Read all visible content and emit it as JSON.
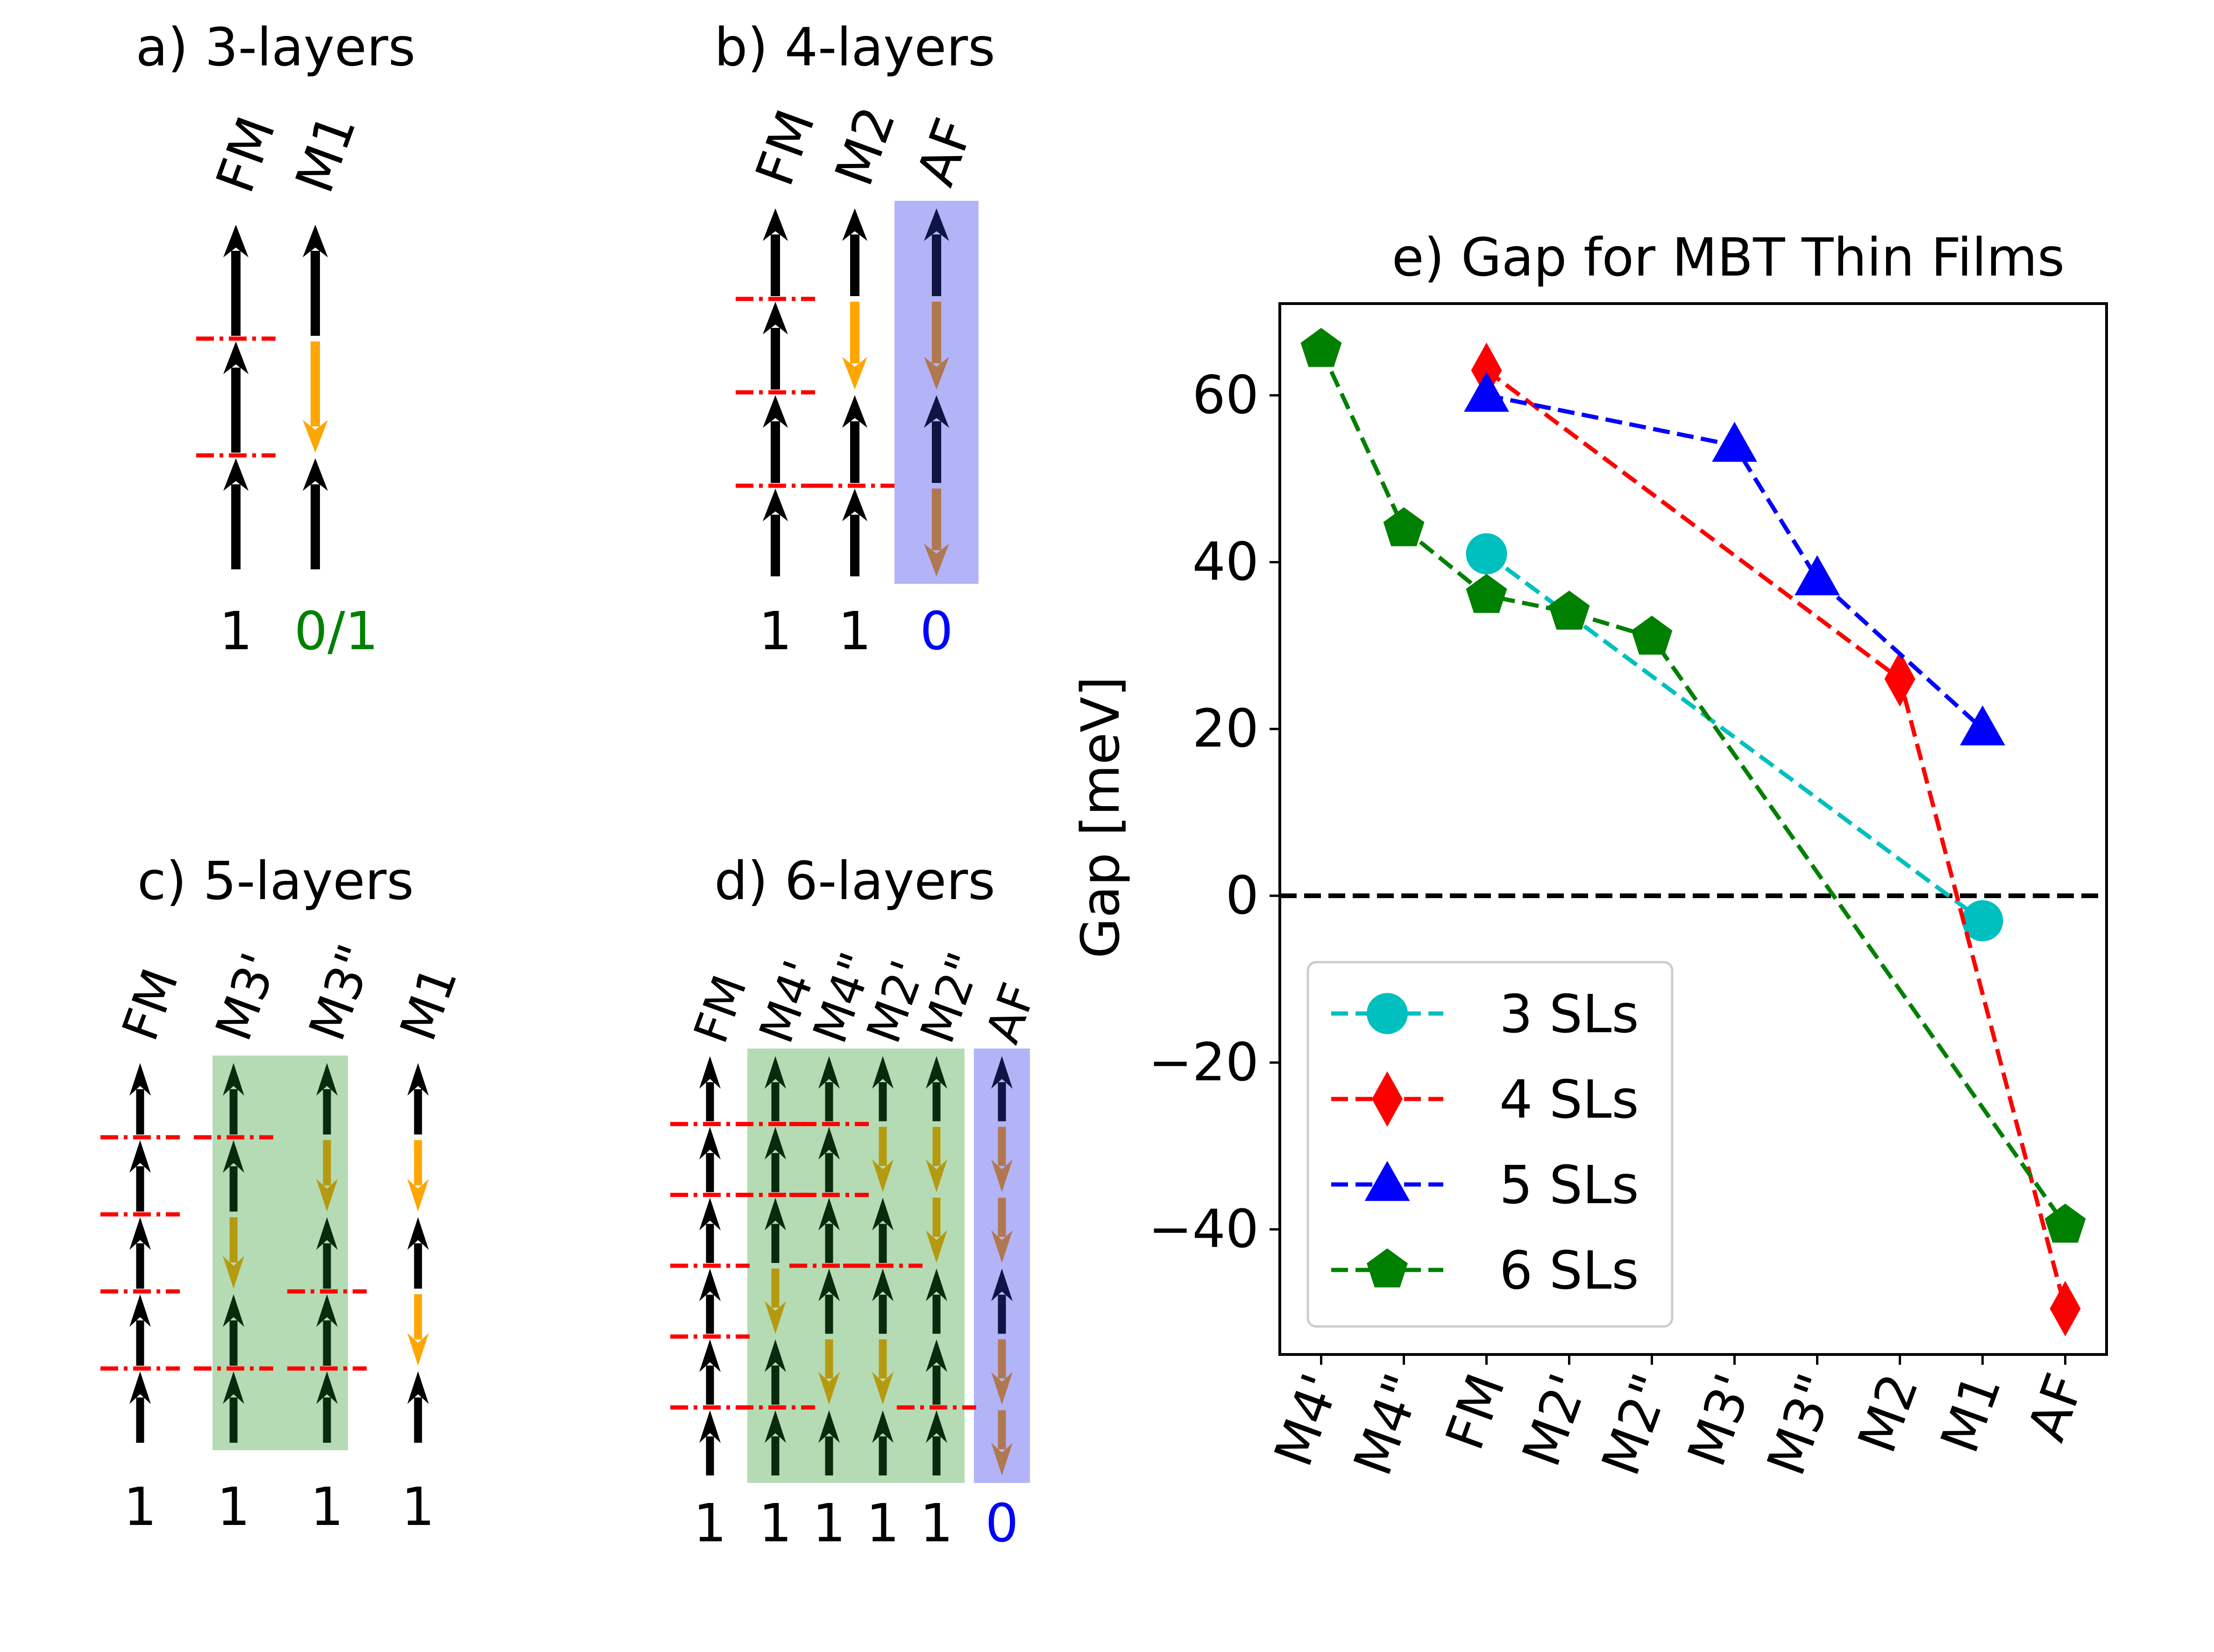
{
  "colors": {
    "black": "#000000",
    "orange": "#ffa500",
    "red": "#ff0000",
    "green_text": "#008000",
    "blue_text": "#0000ff",
    "blue_panel": "#b3b3f7",
    "green_panel": "#b5dbb4",
    "dark_arrow": "#0a2a0e",
    "olive_arrow": "#b59a10",
    "navy_arrow": "#0e1444",
    "brown_arrow": "#b07850",
    "cyan": "#00bfbf",
    "blue": "#0000ff",
    "green": "#008000"
  },
  "panels": [
    {
      "id": "a",
      "title": "a) 3-layers",
      "columns": [
        {
          "label": "FM",
          "arrows": [
            "up",
            "up",
            "up"
          ],
          "cuts": [
            1,
            2
          ],
          "number": "1",
          "number_color": "black",
          "highlight": null
        },
        {
          "label": "M1",
          "arrows": [
            "up",
            "down",
            "up"
          ],
          "cuts": [],
          "number": "0/1",
          "number_color": "green",
          "highlight": null
        }
      ]
    },
    {
      "id": "b",
      "title": "b) 4-layers",
      "columns": [
        {
          "label": "FM",
          "arrows": [
            "up",
            "up",
            "up",
            "up"
          ],
          "cuts": [
            1,
            2,
            3
          ],
          "number": "1",
          "number_color": "black",
          "highlight": null
        },
        {
          "label": "M2",
          "arrows": [
            "up",
            "down",
            "up",
            "up"
          ],
          "cuts": [
            3
          ],
          "number": "1",
          "number_color": "black",
          "highlight": null
        },
        {
          "label": "AF",
          "arrows": [
            "up",
            "down",
            "up",
            "down"
          ],
          "cuts": [],
          "number": "0",
          "number_color": "blue",
          "highlight": "blue"
        }
      ]
    },
    {
      "id": "c",
      "title": "c) 5-layers",
      "columns": [
        {
          "label": "FM",
          "arrows": [
            "up",
            "up",
            "up",
            "up",
            "up"
          ],
          "cuts": [
            1,
            2,
            3,
            4
          ],
          "number": "1",
          "number_color": "black",
          "highlight": null
        },
        {
          "label": "M3'",
          "arrows": [
            "up",
            "up",
            "down",
            "up",
            "up"
          ],
          "cuts": [
            1,
            4
          ],
          "number": "1",
          "number_color": "black",
          "highlight": "green"
        },
        {
          "label": "M3\"",
          "arrows": [
            "up",
            "down",
            "up",
            "up",
            "up"
          ],
          "cuts": [
            3,
            4
          ],
          "number": "1",
          "number_color": "black",
          "highlight": "green"
        },
        {
          "label": "M1",
          "arrows": [
            "up",
            "down",
            "up",
            "down",
            "up"
          ],
          "cuts": [],
          "number": "1",
          "number_color": "black",
          "highlight": null
        }
      ]
    },
    {
      "id": "d",
      "title": "d) 6-layers",
      "columns": [
        {
          "label": "FM",
          "arrows": [
            "up",
            "up",
            "up",
            "up",
            "up",
            "up"
          ],
          "cuts": [
            1,
            2,
            3,
            4,
            5
          ],
          "number": "1",
          "number_color": "black",
          "highlight": null
        },
        {
          "label": "M4'",
          "arrows": [
            "up",
            "up",
            "up",
            "down",
            "up",
            "up"
          ],
          "cuts": [
            1,
            2,
            5
          ],
          "number": "1",
          "number_color": "black",
          "highlight": "green"
        },
        {
          "label": "M4\"",
          "arrows": [
            "up",
            "up",
            "up",
            "up",
            "down",
            "up"
          ],
          "cuts": [
            1,
            2,
            3
          ],
          "number": "1",
          "number_color": "black",
          "highlight": "green"
        },
        {
          "label": "M2'",
          "arrows": [
            "up",
            "down",
            "up",
            "up",
            "down",
            "up"
          ],
          "cuts": [
            3
          ],
          "number": "1",
          "number_color": "black",
          "highlight": "green"
        },
        {
          "label": "M2\"",
          "arrows": [
            "up",
            "down",
            "down",
            "up",
            "up",
            "up"
          ],
          "cuts": [
            5
          ],
          "number": "1",
          "number_color": "black",
          "highlight": "green"
        },
        {
          "label": "AF",
          "arrows": [
            "up",
            "down",
            "down",
            "up",
            "down",
            "down"
          ],
          "cuts": [],
          "number": "0",
          "number_color": "blue",
          "highlight": "blue"
        }
      ]
    }
  ],
  "chart_data": {
    "type": "line",
    "title": "e) Gap for MBT Thin Films",
    "xlabel": "",
    "ylabel": "Gap [meV]",
    "categories": [
      "M4'",
      "M4\"",
      "FM",
      "M2'",
      "M2\"",
      "M3'",
      "M3\"",
      "M2",
      "M1",
      "AF"
    ],
    "ylim": [
      -55,
      71
    ],
    "yticks": [
      -40,
      -20,
      0,
      20,
      40,
      60
    ],
    "ytick_labels": [
      "−40",
      "−20",
      "0",
      "20",
      "40",
      "60"
    ],
    "zero_line": true,
    "legend_position": "lower-left",
    "series": [
      {
        "name": "3 SLs",
        "marker": "circle",
        "color": "#00bfbf",
        "points": [
          [
            2,
            41
          ],
          [
            8,
            -3
          ]
        ]
      },
      {
        "name": "4 SLs",
        "marker": "diamond",
        "color": "#ff0000",
        "points": [
          [
            2,
            63
          ],
          [
            7,
            26
          ],
          [
            9,
            -49.5
          ]
        ]
      },
      {
        "name": "5 SLs",
        "marker": "triangle",
        "color": "#0000ff",
        "points": [
          [
            2,
            60
          ],
          [
            5,
            54
          ],
          [
            6,
            38
          ],
          [
            8,
            20
          ]
        ]
      },
      {
        "name": "6 SLs",
        "marker": "pentagon",
        "color": "#008000",
        "points": [
          [
            0,
            65.5
          ],
          [
            1,
            44
          ],
          [
            2,
            36
          ],
          [
            3,
            34
          ],
          [
            4,
            31
          ],
          [
            9,
            -39.5
          ]
        ]
      }
    ]
  }
}
